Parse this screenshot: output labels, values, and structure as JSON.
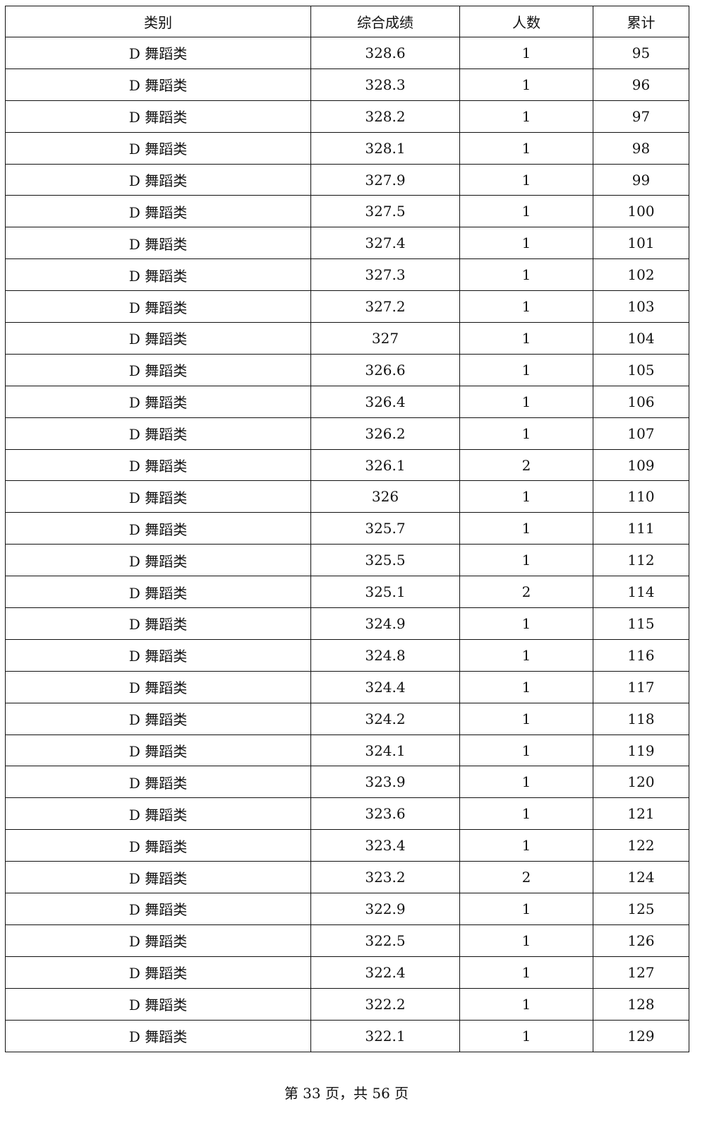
{
  "table": {
    "headers": [
      "类别",
      "综合成绩",
      "人数",
      "累计"
    ],
    "rows": [
      [
        "D 舞蹈类",
        "328.6",
        "1",
        "95"
      ],
      [
        "D 舞蹈类",
        "328.3",
        "1",
        "96"
      ],
      [
        "D 舞蹈类",
        "328.2",
        "1",
        "97"
      ],
      [
        "D 舞蹈类",
        "328.1",
        "1",
        "98"
      ],
      [
        "D 舞蹈类",
        "327.9",
        "1",
        "99"
      ],
      [
        "D 舞蹈类",
        "327.5",
        "1",
        "100"
      ],
      [
        "D 舞蹈类",
        "327.4",
        "1",
        "101"
      ],
      [
        "D 舞蹈类",
        "327.3",
        "1",
        "102"
      ],
      [
        "D 舞蹈类",
        "327.2",
        "1",
        "103"
      ],
      [
        "D 舞蹈类",
        "327",
        "1",
        "104"
      ],
      [
        "D 舞蹈类",
        "326.6",
        "1",
        "105"
      ],
      [
        "D 舞蹈类",
        "326.4",
        "1",
        "106"
      ],
      [
        "D 舞蹈类",
        "326.2",
        "1",
        "107"
      ],
      [
        "D 舞蹈类",
        "326.1",
        "2",
        "109"
      ],
      [
        "D 舞蹈类",
        "326",
        "1",
        "110"
      ],
      [
        "D 舞蹈类",
        "325.7",
        "1",
        "111"
      ],
      [
        "D 舞蹈类",
        "325.5",
        "1",
        "112"
      ],
      [
        "D 舞蹈类",
        "325.1",
        "2",
        "114"
      ],
      [
        "D 舞蹈类",
        "324.9",
        "1",
        "115"
      ],
      [
        "D 舞蹈类",
        "324.8",
        "1",
        "116"
      ],
      [
        "D 舞蹈类",
        "324.4",
        "1",
        "117"
      ],
      [
        "D 舞蹈类",
        "324.2",
        "1",
        "118"
      ],
      [
        "D 舞蹈类",
        "324.1",
        "1",
        "119"
      ],
      [
        "D 舞蹈类",
        "323.9",
        "1",
        "120"
      ],
      [
        "D 舞蹈类",
        "323.6",
        "1",
        "121"
      ],
      [
        "D 舞蹈类",
        "323.4",
        "1",
        "122"
      ],
      [
        "D 舞蹈类",
        "323.2",
        "2",
        "124"
      ],
      [
        "D 舞蹈类",
        "322.9",
        "1",
        "125"
      ],
      [
        "D 舞蹈类",
        "322.5",
        "1",
        "126"
      ],
      [
        "D 舞蹈类",
        "322.4",
        "1",
        "127"
      ],
      [
        "D 舞蹈类",
        "322.2",
        "1",
        "128"
      ],
      [
        "D 舞蹈类",
        "322.1",
        "1",
        "129"
      ]
    ]
  },
  "footer": {
    "text": "第 33 页，共 56 页"
  }
}
